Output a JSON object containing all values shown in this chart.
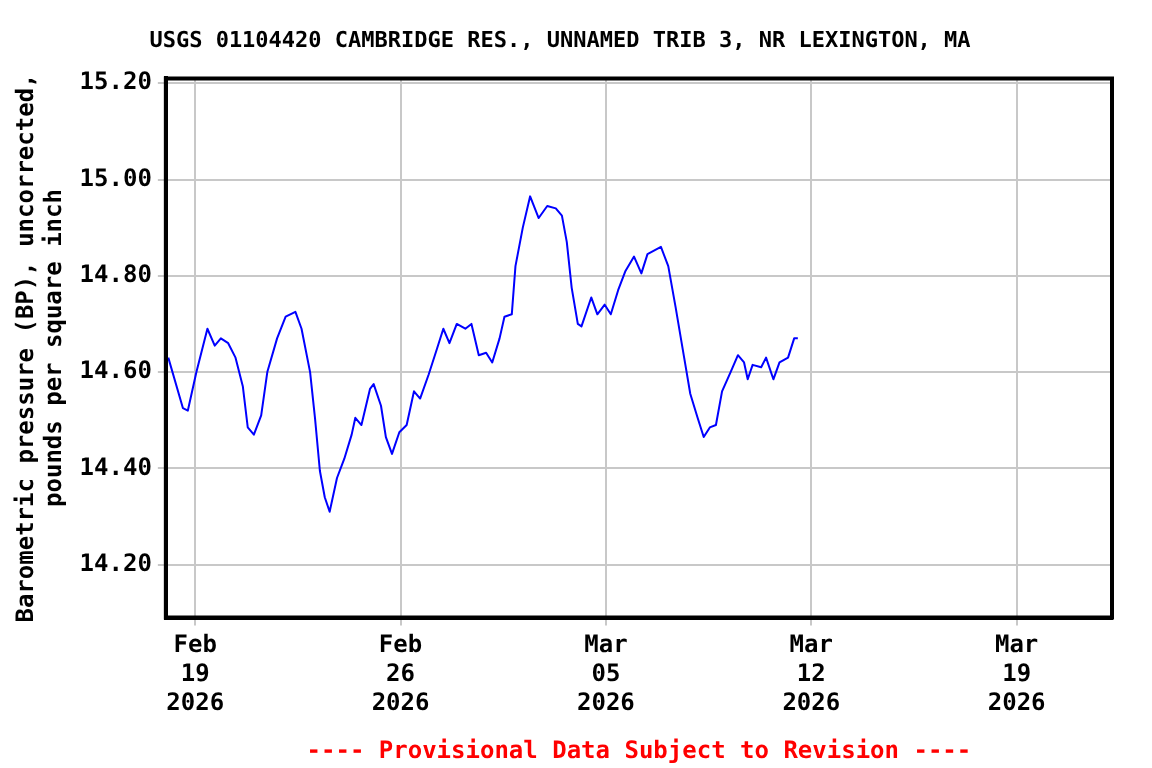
{
  "chart_data": {
    "type": "line",
    "title": "USGS 01104420 CAMBRIDGE RES., UNNAMED TRIB 3, NR LEXINGTON, MA",
    "ylabel": "Barometric pressure (BP), uncorrected,\npounds per square inch",
    "annotations": [
      "---- Provisional Data Subject to Revision ----"
    ],
    "xlim": [
      "2026-02-18T00:00",
      "2026-03-22T06:00"
    ],
    "ylim": [
      14.09,
      15.21
    ],
    "xticks": [
      {
        "value": "2026-02-19",
        "label": "Feb\n19\n2026"
      },
      {
        "value": "2026-02-26",
        "label": "Feb\n26\n2026"
      },
      {
        "value": "2026-03-05",
        "label": "Mar\n05\n2026"
      },
      {
        "value": "2026-03-12",
        "label": "Mar\n12\n2026"
      },
      {
        "value": "2026-03-19",
        "label": "Mar\n19\n2026"
      }
    ],
    "yticks": [
      {
        "value": 14.2,
        "label": "14.20"
      },
      {
        "value": 14.4,
        "label": "14.40"
      },
      {
        "value": 14.6,
        "label": "14.60"
      },
      {
        "value": 14.8,
        "label": "14.80"
      },
      {
        "value": 15.0,
        "label": "15.00"
      },
      {
        "value": 15.2,
        "label": "15.20"
      }
    ],
    "grid": true,
    "legend": false,
    "marker": "none",
    "line_style": "solid",
    "series": [
      {
        "color": "#0000ff",
        "x": [
          "2026-02-18T02:00",
          "2026-02-18T14:00",
          "2026-02-18T18:00",
          "2026-02-19T01:00",
          "2026-02-19T10:00",
          "2026-02-19T16:00",
          "2026-02-19T21:00",
          "2026-02-20T03:00",
          "2026-02-20T09:00",
          "2026-02-20T15:00",
          "2026-02-20T19:00",
          "2026-02-21T00:00",
          "2026-02-21T06:00",
          "2026-02-21T11:00",
          "2026-02-21T19:00",
          "2026-02-22T02:00",
          "2026-02-22T10:00",
          "2026-02-22T15:00",
          "2026-02-22T22:00",
          "2026-02-23T02:00",
          "2026-02-23T06:00",
          "2026-02-23T10:00",
          "2026-02-23T14:00",
          "2026-02-23T20:00",
          "2026-02-24T02:00",
          "2026-02-24T08:00",
          "2026-02-24T11:00",
          "2026-02-24T16:00",
          "2026-02-24T23:00",
          "2026-02-25T02:00",
          "2026-02-25T08:00",
          "2026-02-25T12:00",
          "2026-02-25T17:00",
          "2026-02-25T23:00",
          "2026-02-26T05:00",
          "2026-02-26T11:00",
          "2026-02-26T16:00",
          "2026-02-26T23:00",
          "2026-02-27T06:00",
          "2026-02-27T11:00",
          "2026-02-27T16:00",
          "2026-02-27T22:00",
          "2026-02-28T05:00",
          "2026-02-28T10:00",
          "2026-02-28T16:00",
          "2026-02-28T22:00",
          "2026-03-01T03:00",
          "2026-03-01T09:00",
          "2026-03-01T13:00",
          "2026-03-01T19:00",
          "2026-03-01T22:00",
          "2026-03-02T04:00",
          "2026-03-02T10:00",
          "2026-03-02T17:00",
          "2026-03-03T00:00",
          "2026-03-03T07:00",
          "2026-03-03T12:00",
          "2026-03-03T16:00",
          "2026-03-03T20:00",
          "2026-03-04T01:00",
          "2026-03-04T04:00",
          "2026-03-04T12:00",
          "2026-03-04T17:00",
          "2026-03-04T23:00",
          "2026-03-05T04:00",
          "2026-03-05T10:00",
          "2026-03-05T16:00",
          "2026-03-05T23:00",
          "2026-03-06T05:00",
          "2026-03-06T10:00",
          "2026-03-06T21:00",
          "2026-03-07T03:00",
          "2026-03-07T09:00",
          "2026-03-07T16:00",
          "2026-03-07T21:00",
          "2026-03-08T03:00",
          "2026-03-08T08:00",
          "2026-03-08T13:00",
          "2026-03-08T18:00",
          "2026-03-08T23:00",
          "2026-03-09T06:00",
          "2026-03-09T12:00",
          "2026-03-09T17:00",
          "2026-03-09T20:00",
          "2026-03-10T00:00",
          "2026-03-10T07:00",
          "2026-03-10T11:00",
          "2026-03-10T17:00",
          "2026-03-10T22:00",
          "2026-03-11T05:00",
          "2026-03-11T10:00",
          "2026-03-11T13:00"
        ],
        "values": [
          14.63,
          14.525,
          14.52,
          14.6,
          14.69,
          14.655,
          14.67,
          14.66,
          14.63,
          14.57,
          14.485,
          14.47,
          14.51,
          14.6,
          14.67,
          14.715,
          14.725,
          14.69,
          14.6,
          14.505,
          14.395,
          14.34,
          14.31,
          14.38,
          14.42,
          14.47,
          14.505,
          14.49,
          14.565,
          14.575,
          14.53,
          14.465,
          14.43,
          14.475,
          14.49,
          14.56,
          14.545,
          14.595,
          14.65,
          14.69,
          14.66,
          14.7,
          14.69,
          14.7,
          14.635,
          14.64,
          14.62,
          14.67,
          14.715,
          14.72,
          14.82,
          14.9,
          14.965,
          14.92,
          14.945,
          14.94,
          14.925,
          14.87,
          14.775,
          14.7,
          14.695,
          14.755,
          14.72,
          14.74,
          14.72,
          14.77,
          14.81,
          14.84,
          14.805,
          14.845,
          14.86,
          14.82,
          14.735,
          14.63,
          14.555,
          14.505,
          14.465,
          14.485,
          14.49,
          14.56,
          14.6,
          14.635,
          14.62,
          14.585,
          14.615,
          14.61,
          14.63,
          14.585,
          14.62,
          14.63,
          14.67,
          14.67
        ]
      }
    ]
  }
}
